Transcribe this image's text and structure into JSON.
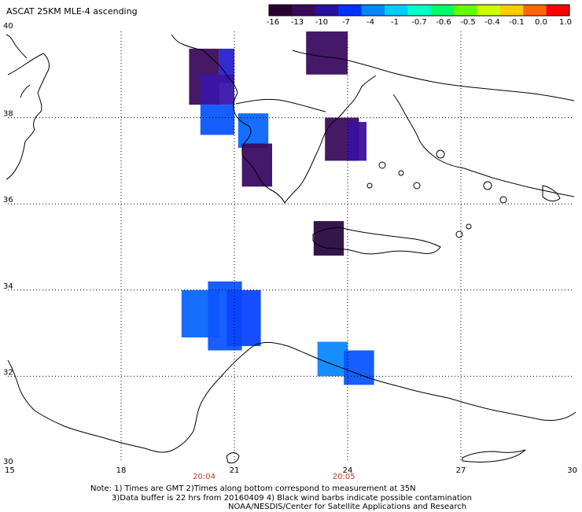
{
  "title": "ASCAT 25KM MLE-4 ascending",
  "colorbar": {
    "labels": [
      "-16",
      "-13",
      "-10",
      "-7",
      "-4",
      "-1",
      "-0.7",
      "-0.6",
      "-0.5",
      "-0.4",
      "-0.1",
      "0.0",
      "1.0"
    ],
    "colors": [
      "#2a0030",
      "#3a0a5a",
      "#2a10a0",
      "#0033ff",
      "#0088ff",
      "#00ccff",
      "#00ffcc",
      "#00ff66",
      "#66ff00",
      "#ccff00",
      "#ffcc00",
      "#ff6600",
      "#ff0000"
    ]
  },
  "axes": {
    "lon_ticks": [
      "15",
      "18",
      "21",
      "24",
      "27",
      "30"
    ],
    "lat_ticks": [
      "40",
      "38",
      "36",
      "34",
      "32",
      "30"
    ],
    "lon_range": [
      15,
      30
    ],
    "lat_range": [
      30,
      40
    ]
  },
  "time_labels": [
    {
      "text": "20:04",
      "lon": 20.2
    },
    {
      "text": "20:05",
      "lon": 23.9
    }
  ],
  "notes": {
    "line1": "Note: 1) Times are GMT 2)Times along bottom correspond to measurement at 35N",
    "line2": "3)Data buffer is 22 hrs from 20160409 4) Black wind barbs indicate possible contamination",
    "line3": "NOAA/NESDIS/Center for Satellite Applications and Research"
  },
  "data_cells": [
    {
      "lon0": 19.8,
      "lon1": 20.6,
      "lat0": 38.3,
      "lat1": 39.6,
      "color": "#3b0d5e"
    },
    {
      "lon0": 20.6,
      "lon1": 21.0,
      "lat0": 38.8,
      "lat1": 39.6,
      "color": "#2a20d0"
    },
    {
      "lon0": 20.1,
      "lon1": 21.0,
      "lat0": 38.3,
      "lat1": 39.0,
      "color": "#3a15a8"
    },
    {
      "lon0": 20.1,
      "lon1": 21.0,
      "lat0": 37.6,
      "lat1": 38.3,
      "color": "#0a55ff"
    },
    {
      "lon0": 21.1,
      "lon1": 21.9,
      "lat0": 37.3,
      "lat1": 38.1,
      "color": "#0a66ff"
    },
    {
      "lon0": 21.2,
      "lon1": 22.0,
      "lat0": 36.4,
      "lat1": 37.4,
      "color": "#3a0c62"
    },
    {
      "lon0": 22.9,
      "lon1": 24.0,
      "lat0": 39.0,
      "lat1": 40.0,
      "color": "#3b0d62"
    },
    {
      "lon0": 23.4,
      "lon1": 24.3,
      "lat0": 37.0,
      "lat1": 38.0,
      "color": "#3b0d5e"
    },
    {
      "lon0": 24.0,
      "lon1": 24.5,
      "lat0": 37.0,
      "lat1": 37.9,
      "color": "#3b10a0"
    },
    {
      "lon0": 23.1,
      "lon1": 23.9,
      "lat0": 34.8,
      "lat1": 35.6,
      "color": "#2a0a40"
    },
    {
      "lon0": 19.6,
      "lon1": 20.6,
      "lat0": 32.9,
      "lat1": 34.0,
      "color": "#0a66ff"
    },
    {
      "lon0": 20.3,
      "lon1": 21.2,
      "lat0": 32.6,
      "lat1": 34.2,
      "color": "#0d55ff"
    },
    {
      "lon0": 20.8,
      "lon1": 21.7,
      "lat0": 32.7,
      "lat1": 34.0,
      "color": "#0a44ff"
    },
    {
      "lon0": 23.2,
      "lon1": 24.0,
      "lat0": 32.0,
      "lat1": 32.8,
      "color": "#0a88ff"
    },
    {
      "lon0": 23.9,
      "lon1": 24.7,
      "lat0": 31.8,
      "lat1": 32.6,
      "color": "#0a55ff"
    }
  ]
}
